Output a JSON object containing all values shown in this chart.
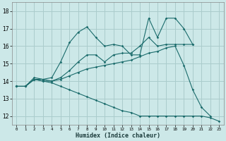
{
  "title": "",
  "xlabel": "Humidex (Indice chaleur)",
  "bg_color": "#cce8e8",
  "grid_color": "#aacccc",
  "line_color": "#1a6b6b",
  "xlim": [
    -0.5,
    23.5
  ],
  "ylim": [
    11.5,
    18.5
  ],
  "xticks": [
    0,
    1,
    2,
    3,
    4,
    5,
    6,
    7,
    8,
    9,
    10,
    11,
    12,
    13,
    14,
    15,
    16,
    17,
    18,
    19,
    20,
    21,
    22,
    23
  ],
  "yticks": [
    12,
    13,
    14,
    15,
    16,
    17,
    18
  ],
  "series": [
    {
      "x": [
        0,
        1,
        2,
        3,
        4,
        5,
        6,
        7,
        8,
        9,
        10,
        11,
        12,
        13,
        14,
        15,
        16,
        17,
        18,
        19,
        20
      ],
      "y": [
        13.7,
        13.7,
        14.2,
        14.1,
        14.2,
        15.1,
        16.2,
        16.8,
        17.1,
        16.5,
        16.0,
        16.1,
        16.0,
        15.5,
        15.5,
        17.6,
        16.5,
        17.6,
        17.6,
        17.0,
        16.1
      ]
    },
    {
      "x": [
        0,
        1,
        2,
        3,
        4,
        5,
        6,
        7,
        8,
        9,
        10,
        11,
        12,
        13,
        14,
        15,
        16,
        17,
        18,
        19,
        20
      ],
      "y": [
        13.7,
        13.7,
        14.1,
        14.0,
        14.0,
        14.2,
        14.6,
        15.1,
        15.5,
        15.5,
        15.1,
        15.5,
        15.6,
        15.6,
        16.0,
        16.5,
        16.0,
        16.1,
        16.1,
        16.1,
        16.1
      ]
    },
    {
      "x": [
        0,
        1,
        2,
        3,
        4,
        5,
        6,
        7,
        8,
        9,
        10,
        11,
        12,
        13,
        14,
        15,
        16,
        17,
        18,
        19,
        20,
        21,
        22
      ],
      "y": [
        13.7,
        13.7,
        14.1,
        14.1,
        14.0,
        14.1,
        14.3,
        14.5,
        14.7,
        14.8,
        14.9,
        15.0,
        15.1,
        15.2,
        15.4,
        15.6,
        15.7,
        15.9,
        16.0,
        14.9,
        13.5,
        12.5,
        12.0
      ]
    },
    {
      "x": [
        0,
        1,
        2,
        3,
        4,
        5,
        6,
        7,
        8,
        9,
        10,
        11,
        12,
        13,
        14,
        15,
        16,
        17,
        18,
        19,
        20,
        21,
        22,
        23
      ],
      "y": [
        13.7,
        13.7,
        14.1,
        14.0,
        13.9,
        13.7,
        13.5,
        13.3,
        13.1,
        12.9,
        12.7,
        12.5,
        12.3,
        12.2,
        12.0,
        12.0,
        12.0,
        12.0,
        12.0,
        12.0,
        12.0,
        12.0,
        11.9,
        11.7
      ]
    }
  ]
}
